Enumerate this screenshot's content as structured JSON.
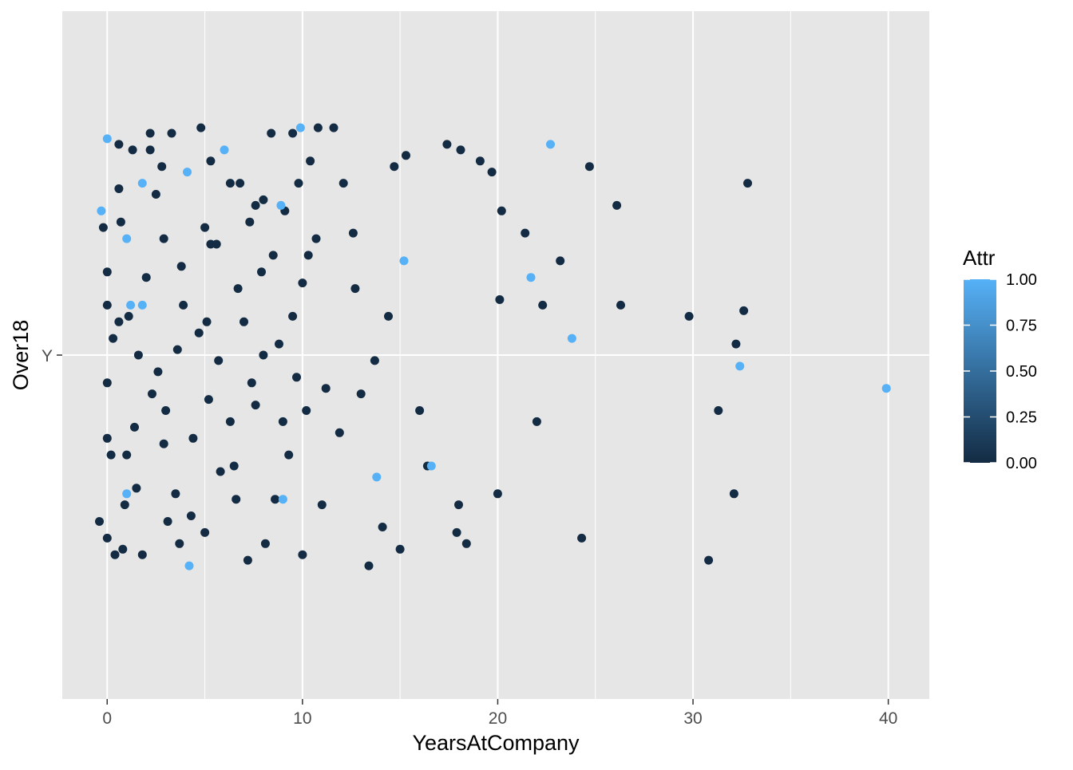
{
  "chart_data": {
    "type": "scatter",
    "title": "",
    "xlabel": "YearsAtCompany",
    "ylabel": "Over18",
    "xlim": [
      -2.3,
      42.1
    ],
    "x_ticks": [
      0,
      10,
      20,
      30,
      40
    ],
    "x_tick_labels": [
      "0",
      "10",
      "20",
      "30",
      "40"
    ],
    "y_categories": [
      "Y"
    ],
    "jitter_range": [
      -0.4,
      0.4
    ],
    "grid": true,
    "colors": {
      "panel_background": "#e6e6e6",
      "grid": "#ffffff",
      "low": "#132b43",
      "high": "#56b1f7"
    },
    "legend": {
      "title": "Attr",
      "position": "right",
      "range": [
        0,
        1
      ],
      "breaks": [
        0.0,
        0.25,
        0.5,
        0.75,
        1.0
      ],
      "break_labels": [
        "0.00",
        "0.25",
        "0.50",
        "0.75",
        "1.00"
      ]
    },
    "points": [
      [
        -0.4,
        -0.3,
        0
      ],
      [
        0.0,
        -0.33,
        0
      ],
      [
        0.0,
        -0.15,
        0
      ],
      [
        0.4,
        -0.36,
        0
      ],
      [
        0.0,
        0.39,
        1
      ],
      [
        0.6,
        0.06,
        0
      ],
      [
        0.6,
        0.38,
        0
      ],
      [
        0.6,
        0.3,
        0
      ],
      [
        -0.2,
        0.23,
        0
      ],
      [
        0.0,
        0.09,
        0
      ],
      [
        -0.3,
        0.26,
        1
      ],
      [
        0.0,
        0.15,
        0
      ],
      [
        0.9,
        -0.27,
        0
      ],
      [
        1.0,
        0.21,
        1
      ],
      [
        1.1,
        0.07,
        0
      ],
      [
        1.0,
        -0.18,
        0
      ],
      [
        1.3,
        0.37,
        0
      ],
      [
        0.8,
        -0.35,
        0
      ],
      [
        0.3,
        0.03,
        0
      ],
      [
        1.0,
        -0.25,
        1
      ],
      [
        1.6,
        0.0,
        0
      ],
      [
        1.8,
        -0.36,
        0
      ],
      [
        2.0,
        0.14,
        0
      ],
      [
        1.4,
        -0.13,
        0
      ],
      [
        1.8,
        0.31,
        1
      ],
      [
        2.3,
        -0.07,
        0
      ],
      [
        1.8,
        0.09,
        1
      ],
      [
        2.2,
        0.37,
        0
      ],
      [
        2.9,
        -0.16,
        0
      ],
      [
        2.8,
        0.34,
        0
      ],
      [
        2.5,
        0.29,
        0
      ],
      [
        2.9,
        0.21,
        0
      ],
      [
        3.0,
        -0.1,
        0
      ],
      [
        3.3,
        0.4,
        0
      ],
      [
        3.5,
        -0.25,
        0
      ],
      [
        4.2,
        -0.38,
        1
      ],
      [
        3.8,
        0.16,
        0
      ],
      [
        3.6,
        0.01,
        0
      ],
      [
        4.1,
        0.33,
        1
      ],
      [
        4.3,
        -0.29,
        0
      ],
      [
        4.7,
        0.04,
        0
      ],
      [
        5.0,
        0.23,
        0
      ],
      [
        4.8,
        0.41,
        0
      ],
      [
        5.2,
        -0.08,
        0
      ],
      [
        5.3,
        0.2,
        0
      ],
      [
        5.0,
        -0.32,
        0
      ],
      [
        5.3,
        0.35,
        0
      ],
      [
        5.7,
        -0.01,
        0
      ],
      [
        6.0,
        0.37,
        1
      ],
      [
        5.8,
        -0.21,
        0
      ],
      [
        6.3,
        0.31,
        0
      ],
      [
        6.3,
        -0.12,
        0
      ],
      [
        6.7,
        0.12,
        0
      ],
      [
        6.6,
        -0.26,
        0
      ],
      [
        7.0,
        0.06,
        0
      ],
      [
        7.2,
        -0.37,
        0
      ],
      [
        7.3,
        0.24,
        0
      ],
      [
        7.6,
        -0.09,
        0
      ],
      [
        7.6,
        0.27,
        0
      ],
      [
        8.0,
        0.0,
        0
      ],
      [
        8.0,
        0.28,
        0
      ],
      [
        8.1,
        -0.34,
        0
      ],
      [
        8.5,
        0.18,
        0
      ],
      [
        8.6,
        -0.26,
        0
      ],
      [
        8.8,
        0.02,
        0
      ],
      [
        8.4,
        0.4,
        0
      ],
      [
        9.1,
        0.26,
        0
      ],
      [
        9.0,
        -0.12,
        0
      ],
      [
        9.5,
        0.4,
        0
      ],
      [
        9.3,
        -0.18,
        0
      ],
      [
        9.5,
        0.07,
        0
      ],
      [
        9.8,
        0.31,
        0
      ],
      [
        10.0,
        -0.36,
        0
      ],
      [
        9.9,
        0.41,
        1
      ],
      [
        10.2,
        -0.1,
        0
      ],
      [
        10.4,
        0.35,
        0
      ],
      [
        10.0,
        0.13,
        0
      ],
      [
        10.8,
        0.41,
        0
      ],
      [
        11.0,
        -0.27,
        0
      ],
      [
        11.6,
        0.41,
        0
      ],
      [
        12.1,
        0.31,
        0
      ],
      [
        12.7,
        0.12,
        0
      ],
      [
        13.4,
        -0.38,
        0
      ],
      [
        13.7,
        -0.01,
        0
      ],
      [
        14.4,
        0.07,
        0
      ],
      [
        14.7,
        0.34,
        0
      ],
      [
        15.3,
        0.36,
        0
      ],
      [
        15.0,
        -0.35,
        0
      ],
      [
        16.4,
        -0.2,
        0
      ],
      [
        17.9,
        -0.32,
        0
      ],
      [
        18.4,
        -0.34,
        0
      ],
      [
        19.1,
        0.35,
        0
      ],
      [
        20.1,
        0.1,
        0
      ],
      [
        21.7,
        0.14,
        1
      ],
      [
        22.7,
        0.38,
        1
      ],
      [
        24.3,
        -0.33,
        0
      ],
      [
        24.7,
        0.34,
        0
      ],
      [
        26.1,
        0.27,
        0
      ],
      [
        26.3,
        0.09,
        0
      ],
      [
        29.8,
        0.07,
        0
      ],
      [
        30.8,
        -0.37,
        0
      ],
      [
        31.3,
        -0.1,
        0
      ],
      [
        32.1,
        -0.25,
        0
      ],
      [
        32.2,
        0.02,
        0
      ],
      [
        32.4,
        -0.02,
        1
      ],
      [
        32.6,
        0.08,
        0
      ],
      [
        32.8,
        0.31,
        0
      ],
      [
        39.9,
        -0.06,
        1
      ],
      [
        0.0,
        -0.05,
        0
      ],
      [
        0.2,
        -0.18,
        0
      ],
      [
        0.7,
        0.24,
        0
      ],
      [
        1.2,
        0.09,
        1
      ],
      [
        1.5,
        -0.24,
        0
      ],
      [
        2.6,
        -0.03,
        0
      ],
      [
        3.1,
        -0.3,
        0
      ],
      [
        3.9,
        0.09,
        0
      ],
      [
        4.4,
        -0.15,
        0
      ],
      [
        5.6,
        0.2,
        0
      ],
      [
        6.8,
        0.31,
        0
      ],
      [
        7.4,
        -0.05,
        0
      ],
      [
        8.9,
        0.27,
        1
      ],
      [
        9.7,
        -0.04,
        0
      ],
      [
        10.3,
        0.18,
        0
      ],
      [
        11.2,
        -0.06,
        0
      ],
      [
        13.0,
        -0.07,
        0
      ],
      [
        16.0,
        -0.1,
        0
      ],
      [
        18.0,
        -0.27,
        0
      ],
      [
        20.0,
        -0.25,
        0
      ],
      [
        22.0,
        -0.12,
        0
      ],
      [
        23.8,
        0.03,
        1
      ],
      [
        13.8,
        -0.22,
        1
      ],
      [
        15.2,
        0.17,
        1
      ],
      [
        16.6,
        -0.2,
        1
      ],
      [
        17.4,
        0.38,
        0
      ],
      [
        18.1,
        0.37,
        0
      ],
      [
        19.7,
        0.33,
        0
      ],
      [
        20.2,
        0.26,
        0
      ],
      [
        21.4,
        0.22,
        0
      ],
      [
        22.3,
        0.09,
        0
      ],
      [
        23.2,
        0.17,
        0
      ],
      [
        2.2,
        0.4,
        0
      ],
      [
        3.7,
        -0.34,
        0
      ],
      [
        5.1,
        0.06,
        0
      ],
      [
        6.5,
        -0.2,
        0
      ],
      [
        7.9,
        0.15,
        0
      ],
      [
        9.0,
        -0.26,
        1
      ],
      [
        10.7,
        0.21,
        0
      ],
      [
        11.9,
        -0.14,
        0
      ],
      [
        12.6,
        0.22,
        0
      ],
      [
        14.1,
        -0.31,
        0
      ]
    ]
  }
}
